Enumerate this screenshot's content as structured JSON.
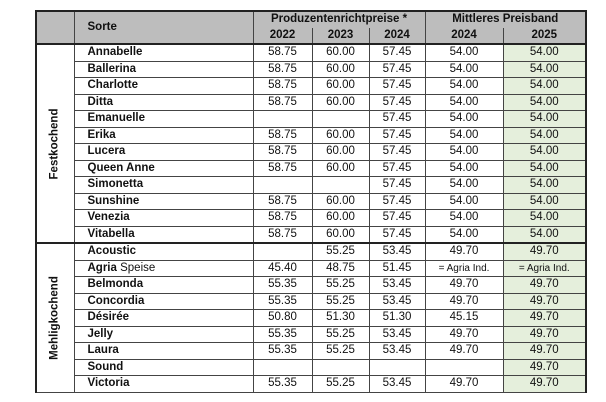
{
  "header": {
    "sorte": "Sorte",
    "group_producer": "Produzentenrichtpreise *",
    "group_band": "Mittleres Preisband",
    "years": [
      "2022",
      "2023",
      "2024",
      "2024",
      "2025"
    ]
  },
  "highlight_color": "#e5efdc",
  "groups": [
    {
      "label": "Festkochend",
      "rows": [
        {
          "name": "Annabelle",
          "values": [
            "58.75",
            "60.00",
            "57.45",
            "54.00",
            "54.00"
          ]
        },
        {
          "name": "Ballerina",
          "values": [
            "58.75",
            "60.00",
            "57.45",
            "54.00",
            "54.00"
          ]
        },
        {
          "name": "Charlotte",
          "values": [
            "58.75",
            "60.00",
            "57.45",
            "54.00",
            "54.00"
          ]
        },
        {
          "name": "Ditta",
          "values": [
            "58.75",
            "60.00",
            "57.45",
            "54.00",
            "54.00"
          ]
        },
        {
          "name": "Emanuelle",
          "values": [
            "",
            "",
            "57.45",
            "54.00",
            "54.00"
          ]
        },
        {
          "name": "Erika",
          "values": [
            "58.75",
            "60.00",
            "57.45",
            "54.00",
            "54.00"
          ]
        },
        {
          "name": "Lucera",
          "values": [
            "58.75",
            "60.00",
            "57.45",
            "54.00",
            "54.00"
          ]
        },
        {
          "name": "Queen Anne",
          "values": [
            "58.75",
            "60.00",
            "57.45",
            "54.00",
            "54.00"
          ]
        },
        {
          "name": "Simonetta",
          "values": [
            "",
            "",
            "57.45",
            "54.00",
            "54.00"
          ]
        },
        {
          "name": "Sunshine",
          "values": [
            "58.75",
            "60.00",
            "57.45",
            "54.00",
            "54.00"
          ]
        },
        {
          "name": "Venezia",
          "values": [
            "58.75",
            "60.00",
            "57.45",
            "54.00",
            "54.00"
          ]
        },
        {
          "name": "Vitabella",
          "values": [
            "58.75",
            "60.00",
            "57.45",
            "54.00",
            "54.00"
          ]
        }
      ]
    },
    {
      "label": "Mehligkochend",
      "rows": [
        {
          "name": "Acoustic",
          "values": [
            "",
            "55.25",
            "53.45",
            "49.70",
            "49.70"
          ]
        },
        {
          "name": "Agria",
          "suffix": " Speise",
          "values": [
            "45.40",
            "48.75",
            "51.45",
            "= Agria Ind.",
            "= Agria Ind."
          ]
        },
        {
          "name": "Belmonda",
          "values": [
            "55.35",
            "55.25",
            "53.45",
            "49.70",
            "49.70"
          ]
        },
        {
          "name": "Concordia",
          "values": [
            "55.35",
            "55.25",
            "53.45",
            "49.70",
            "49.70"
          ]
        },
        {
          "name": "Désirée",
          "values": [
            "50.80",
            "51.30",
            "51.30",
            "45.15",
            "49.70"
          ]
        },
        {
          "name": "Jelly",
          "values": [
            "55.35",
            "55.25",
            "53.45",
            "49.70",
            "49.70"
          ]
        },
        {
          "name": "Laura",
          "values": [
            "55.35",
            "55.25",
            "53.45",
            "49.70",
            "49.70"
          ]
        },
        {
          "name": "Sound",
          "values": [
            "",
            "",
            "",
            "",
            "49.70"
          ]
        },
        {
          "name": "Victoria",
          "values": [
            "55.35",
            "55.25",
            "53.45",
            "49.70",
            "49.70"
          ]
        }
      ]
    }
  ]
}
